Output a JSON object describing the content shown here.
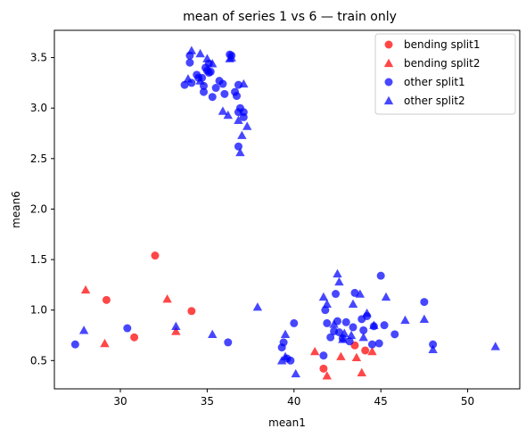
{
  "chart_data": {
    "type": "scatter",
    "title": "mean of series 1 vs 6 — train only",
    "xlabel": "mean1",
    "ylabel": "mean6",
    "xlim": [
      26.2,
      53.0
    ],
    "ylim": [
      0.22,
      3.77
    ],
    "xticks": [
      30,
      35,
      40,
      45,
      50
    ],
    "yticks": [
      0.5,
      1.0,
      1.5,
      2.0,
      2.5,
      3.0,
      3.5
    ],
    "xtick_labels": [
      "30",
      "35",
      "40",
      "45",
      "50"
    ],
    "ytick_labels": [
      "0.5",
      "1.0",
      "1.5",
      "2.0",
      "2.5",
      "3.0",
      "3.5"
    ],
    "grid": false,
    "legend_position": "top-right",
    "series": [
      {
        "name": "bending split1",
        "color": "#ff0000",
        "marker": "circle",
        "x": [
          32.0,
          29.2,
          34.1,
          30.8,
          41.7,
          43.5,
          44.1
        ],
        "y": [
          1.54,
          1.1,
          0.99,
          0.73,
          0.42,
          0.65,
          0.6
        ]
      },
      {
        "name": "bending split2",
        "color": "#ff0000",
        "marker": "triangle",
        "x": [
          28.0,
          32.7,
          33.2,
          29.1,
          41.2,
          42.7,
          43.6,
          44.5,
          41.9,
          43.9
        ],
        "y": [
          1.2,
          1.11,
          0.79,
          0.67,
          0.59,
          0.54,
          0.53,
          0.59,
          0.35,
          0.38
        ]
      },
      {
        "name": "other split1",
        "color": "#0000ff",
        "marker": "circle",
        "x": [
          34.0,
          34.9,
          35.1,
          34.5,
          35.2,
          36.4,
          36.3,
          34.0,
          34.4,
          35.0,
          35.7,
          34.8,
          35.9,
          36.8,
          37.1,
          33.7,
          34.8,
          35.3,
          36.0,
          35.5,
          34.1,
          36.6,
          36.7,
          35.1,
          34.7,
          36.9,
          36.8,
          37.1,
          36.8,
          27.4,
          30.4,
          36.2,
          39.4,
          40.0,
          39.3,
          39.6,
          39.8,
          42.3,
          42.5,
          43.0,
          43.4,
          42.4,
          43.5,
          44.2,
          44.0,
          45.2,
          44.6,
          45.8,
          47.5,
          48.0,
          41.8,
          42.1,
          42.8,
          43.2,
          44.5,
          45.0,
          41.9,
          41.7,
          42.6,
          43.9,
          44.9
        ],
        "y": [
          3.52,
          3.4,
          3.44,
          3.3,
          3.36,
          3.52,
          3.53,
          3.45,
          3.33,
          3.37,
          3.27,
          3.22,
          3.24,
          3.23,
          2.96,
          3.23,
          3.16,
          3.11,
          3.14,
          3.2,
          3.25,
          3.16,
          3.12,
          3.35,
          3.3,
          3.0,
          2.96,
          2.91,
          2.62,
          0.66,
          0.82,
          0.68,
          0.68,
          0.87,
          0.63,
          0.52,
          0.5,
          0.79,
          0.89,
          0.88,
          0.83,
          1.16,
          1.17,
          0.94,
          0.8,
          0.85,
          0.84,
          0.76,
          1.08,
          0.66,
          1.0,
          0.73,
          0.72,
          0.69,
          0.66,
          1.34,
          0.87,
          0.55,
          0.78,
          0.91,
          0.67
        ]
      },
      {
        "name": "other split2",
        "color": "#0000ff",
        "marker": "triangle",
        "x": [
          34.1,
          34.6,
          35.0,
          35.3,
          36.3,
          36.4,
          37.1,
          37.3,
          37.0,
          36.9,
          33.9,
          34.6,
          35.9,
          36.2,
          36.8,
          27.9,
          33.2,
          35.3,
          37.9,
          39.5,
          40.1,
          39.5,
          41.7,
          42.5,
          42.6,
          43.4,
          41.9,
          42.3,
          42.9,
          44.0,
          44.2,
          44.6,
          45.3,
          46.4,
          47.5,
          48.0,
          51.6,
          39.3,
          43.3,
          43.8,
          42.8
        ],
        "y": [
          3.57,
          3.54,
          3.49,
          3.44,
          3.49,
          3.5,
          3.24,
          2.82,
          2.73,
          2.56,
          3.29,
          3.27,
          2.97,
          2.93,
          2.88,
          0.8,
          0.84,
          0.76,
          1.03,
          0.54,
          0.37,
          0.76,
          1.13,
          1.36,
          1.28,
          1.06,
          1.06,
          0.86,
          0.77,
          0.73,
          0.97,
          0.85,
          1.13,
          0.9,
          0.91,
          0.61,
          0.64,
          0.5,
          0.75,
          1.16,
          0.71
        ]
      }
    ]
  }
}
